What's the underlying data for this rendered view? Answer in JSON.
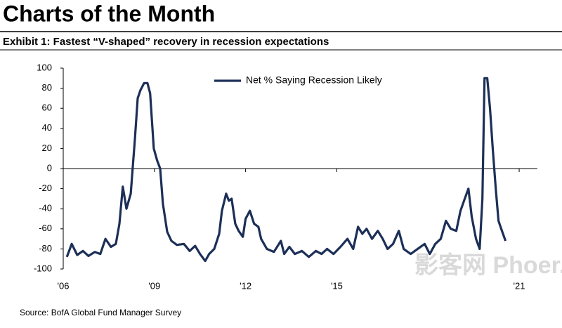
{
  "header": {
    "title": "Charts of the Month"
  },
  "chart_data": {
    "type": "line",
    "title": "Exhibit 1: Fastest “V-shaped” recovery in recession expectations",
    "source": "Source: BofA Global Fund Manager Survey",
    "watermark": "影客网 Phoer.com",
    "legend": "top",
    "xlim": [
      2006,
      2021.6
    ],
    "xticks": [
      {
        "value": 2006,
        "label": "'06"
      },
      {
        "value": 2009,
        "label": "'09"
      },
      {
        "value": 2012,
        "label": "'12"
      },
      {
        "value": 2015,
        "label": "'15"
      },
      {
        "value": 2021,
        "label": "'21"
      }
    ],
    "ylim": [
      -100,
      100
    ],
    "yticks": [
      -100,
      -80,
      -60,
      -40,
      -20,
      0,
      20,
      40,
      60,
      80,
      100
    ],
    "x": [
      2006.12,
      2006.28,
      2006.46,
      2006.65,
      2006.83,
      2007.04,
      2007.22,
      2007.39,
      2007.57,
      2007.73,
      2007.85,
      2007.96,
      2008.08,
      2008.22,
      2008.36,
      2008.45,
      2008.54,
      2008.66,
      2008.77,
      2008.86,
      2008.98,
      2009.09,
      2009.19,
      2009.28,
      2009.42,
      2009.56,
      2009.74,
      2009.97,
      2010.16,
      2010.34,
      2010.5,
      2010.67,
      2010.8,
      2010.97,
      2011.13,
      2011.22,
      2011.36,
      2011.45,
      2011.54,
      2011.66,
      2011.77,
      2011.91,
      2012.0,
      2012.14,
      2012.28,
      2012.42,
      2012.51,
      2012.7,
      2012.93,
      2013.16,
      2013.27,
      2013.44,
      2013.62,
      2013.85,
      2014.08,
      2014.31,
      2014.5,
      2014.68,
      2014.89,
      2015.12,
      2015.35,
      2015.54,
      2015.7,
      2015.84,
      2015.98,
      2016.16,
      2016.35,
      2016.51,
      2016.67,
      2016.85,
      2017.04,
      2017.2,
      2017.43,
      2017.66,
      2017.89,
      2018.06,
      2018.24,
      2018.42,
      2018.59,
      2018.75,
      2018.93,
      2019.07,
      2019.21,
      2019.33,
      2019.44,
      2019.58,
      2019.7,
      2019.79,
      2019.86,
      2019.95,
      2020.04,
      2020.13,
      2020.23,
      2020.32,
      2020.41,
      2020.55
    ],
    "series": [
      {
        "name": "Net % Saying Recession Likely",
        "color": "#1c2f57",
        "values": [
          -88,
          -75,
          -86,
          -82,
          -87,
          -83,
          -85,
          -70,
          -78,
          -75,
          -55,
          -18,
          -40,
          -25,
          30,
          70,
          78,
          85,
          85,
          75,
          20,
          8,
          0,
          -35,
          -63,
          -72,
          -76,
          -75,
          -82,
          -77,
          -85,
          -92,
          -85,
          -80,
          -65,
          -42,
          -25,
          -32,
          -30,
          -55,
          -62,
          -68,
          -50,
          -42,
          -55,
          -58,
          -70,
          -80,
          -83,
          -72,
          -85,
          -78,
          -85,
          -82,
          -88,
          -82,
          -85,
          -80,
          -85,
          -78,
          -70,
          -80,
          -58,
          -65,
          -60,
          -70,
          -62,
          -70,
          -80,
          -75,
          -62,
          -80,
          -85,
          -80,
          -75,
          -85,
          -75,
          -70,
          -52,
          -60,
          -62,
          -42,
          -30,
          -20,
          -48,
          -70,
          -80,
          -30,
          90,
          90,
          60,
          20,
          -20,
          -52,
          -60,
          -72
        ]
      }
    ]
  }
}
